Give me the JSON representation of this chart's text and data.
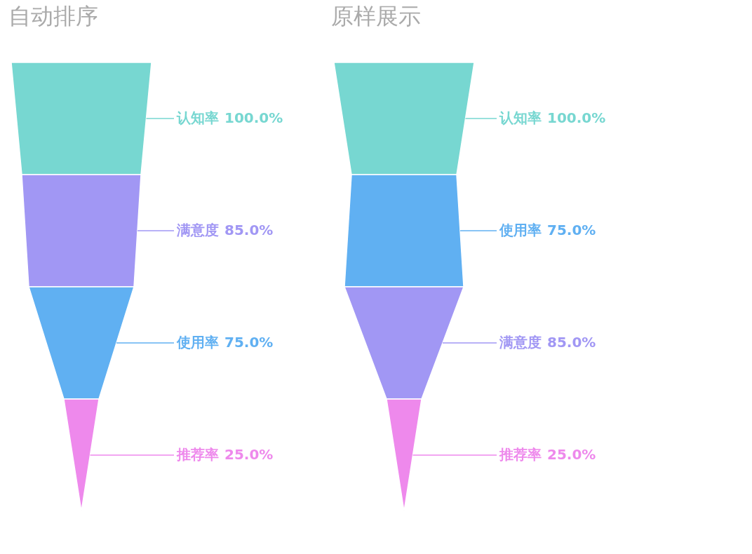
{
  "chart_data": [
    {
      "type": "other",
      "title": "自动排序",
      "categories": [
        "认知率",
        "满意度",
        "使用率",
        "推荐率"
      ],
      "values": [
        100.0,
        85.0,
        75.0,
        25.0
      ],
      "value_labels": [
        "100.0%",
        "85.0%",
        "75.0%",
        "25.0%"
      ],
      "colors": [
        "#77d7d1",
        "#a197f4",
        "#60b0f2",
        "#ee89ec"
      ]
    },
    {
      "type": "other",
      "title": "原样展示",
      "categories": [
        "认知率",
        "使用率",
        "满意度",
        "推荐率"
      ],
      "values": [
        100.0,
        75.0,
        85.0,
        25.0
      ],
      "value_labels": [
        "100.0%",
        "75.0%",
        "85.0%",
        "25.0%"
      ],
      "colors": [
        "#77d7d1",
        "#60b0f2",
        "#a197f4",
        "#ee89ec"
      ]
    }
  ]
}
